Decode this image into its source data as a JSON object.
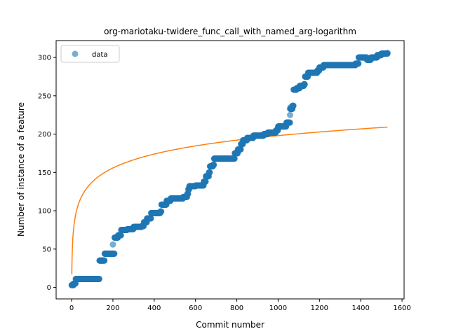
{
  "chart_data": {
    "type": "scatter",
    "title": "org-mariotaku-twidere_func_call_with_named_arg-logarithm",
    "xlabel": "Commit number",
    "ylabel": "Number of instance of a feature",
    "xlim": [
      -75,
      1610
    ],
    "ylim": [
      -15,
      322
    ],
    "xticks": [
      0,
      200,
      400,
      600,
      800,
      1000,
      1200,
      1400,
      1600
    ],
    "yticks": [
      0,
      50,
      100,
      150,
      200,
      250,
      300
    ],
    "grid": false,
    "legend": {
      "placement": "top-left",
      "entries": [
        "data"
      ]
    },
    "colors": {
      "data": "#1f77b4",
      "fit": "#ff7f0e"
    },
    "series": [
      {
        "name": "data",
        "kind": "scatter",
        "step_points": [
          [
            0,
            3
          ],
          [
            10,
            5
          ],
          [
            20,
            11
          ],
          [
            130,
            11
          ],
          [
            135,
            35
          ],
          [
            155,
            35
          ],
          [
            160,
            44
          ],
          [
            205,
            44
          ],
          [
            208,
            65
          ],
          [
            225,
            68
          ],
          [
            240,
            75
          ],
          [
            270,
            76
          ],
          [
            300,
            79
          ],
          [
            340,
            80
          ],
          [
            350,
            85
          ],
          [
            365,
            90
          ],
          [
            385,
            97
          ],
          [
            430,
            99
          ],
          [
            435,
            108
          ],
          [
            460,
            113
          ],
          [
            480,
            116
          ],
          [
            540,
            118
          ],
          [
            560,
            122
          ],
          [
            565,
            128
          ],
          [
            570,
            132
          ],
          [
            600,
            133
          ],
          [
            640,
            138
          ],
          [
            650,
            145
          ],
          [
            665,
            150
          ],
          [
            670,
            158
          ],
          [
            685,
            160
          ],
          [
            690,
            168
          ],
          [
            760,
            168
          ],
          [
            790,
            175
          ],
          [
            805,
            180
          ],
          [
            820,
            187
          ],
          [
            830,
            192
          ],
          [
            850,
            195
          ],
          [
            880,
            198
          ],
          [
            930,
            200
          ],
          [
            950,
            202
          ],
          [
            990,
            205
          ],
          [
            1000,
            210
          ],
          [
            1040,
            215
          ],
          [
            1058,
            233
          ],
          [
            1070,
            237
          ],
          [
            1075,
            258
          ],
          [
            1090,
            260
          ],
          [
            1105,
            263
          ],
          [
            1125,
            265
          ],
          [
            1130,
            275
          ],
          [
            1145,
            280
          ],
          [
            1190,
            283
          ],
          [
            1200,
            287
          ],
          [
            1220,
            290
          ],
          [
            1350,
            290
          ],
          [
            1375,
            292
          ],
          [
            1390,
            300
          ],
          [
            1420,
            300
          ],
          [
            1430,
            297
          ],
          [
            1450,
            300
          ],
          [
            1480,
            303
          ],
          [
            1500,
            305
          ],
          [
            1530,
            306
          ]
        ],
        "outliers": [
          [
            200,
            56
          ],
          [
            1058,
            225
          ],
          [
            1060,
            235
          ]
        ]
      },
      {
        "name": "",
        "kind": "line",
        "model": "y = a + b * ln(x)",
        "a": 17.0,
        "b": 26.2,
        "x_range": [
          1,
          1530
        ]
      }
    ]
  }
}
